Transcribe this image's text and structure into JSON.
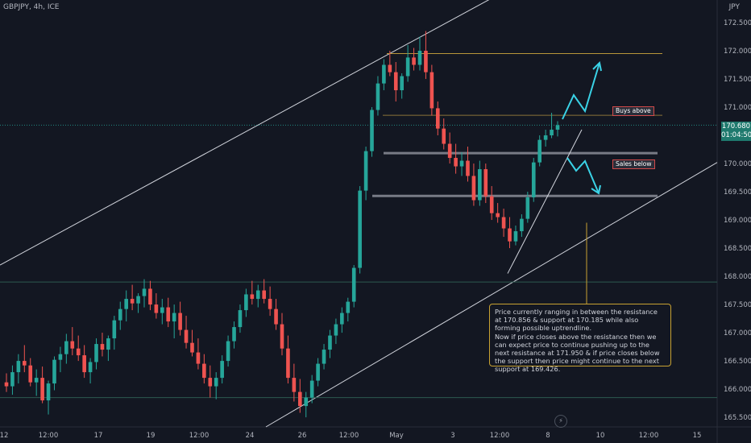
{
  "header": {
    "symbol": "GBPJPY, 4h, ICE",
    "currency": "JPY"
  },
  "price_tag": {
    "price": "170.680",
    "countdown": "01:04:50"
  },
  "annotation": {
    "text": "Price currently ranging in between the resistance at 170.856 & support at 170.185 while also forming possible uptrendline.",
    "text2": "Now if price closes above the resistance then we can expect price to continue pushing up to the next resistance at 171.950 & if price closes below the support then price might continue to the next support at 169.426."
  },
  "labels": {
    "buys": "Buys above",
    "sales": "Sales below"
  },
  "icons": {
    "lightning": "lightning-icon"
  },
  "colors": {
    "bg": "#131722",
    "up": "#26a69a",
    "down": "#ef5350",
    "arrow": "#3ad2e6"
  },
  "chart_data": {
    "type": "candlestick",
    "ylim": [
      165.33,
      172.9
    ],
    "y_ticks": [
      "172.500",
      "172.000",
      "171.500",
      "171.000",
      "170.500",
      "170.000",
      "169.500",
      "169.000",
      "168.500",
      "168.000",
      "167.500",
      "167.000",
      "166.500",
      "166.000",
      "165.500"
    ],
    "x_ticks": [
      "12",
      "12:00",
      "17",
      "19",
      "12:00",
      "24",
      "26",
      "12:00",
      "May",
      "3",
      "12:00",
      "8",
      "10",
      "12:00",
      "15"
    ],
    "levels": [
      {
        "name": "resistance_top",
        "value": 171.95
      },
      {
        "name": "resistance",
        "value": 170.856
      },
      {
        "name": "support",
        "value": 170.185
      },
      {
        "name": "support_low",
        "value": 169.426
      },
      {
        "name": "level_168",
        "value": 167.9
      },
      {
        "name": "level_166",
        "value": 165.85
      }
    ],
    "candles": [
      [
        166.12,
        166.28,
        165.95,
        166.05
      ],
      [
        166.05,
        166.42,
        165.9,
        166.3
      ],
      [
        166.3,
        166.62,
        166.1,
        166.5
      ],
      [
        166.5,
        166.78,
        166.3,
        166.42
      ],
      [
        166.42,
        166.55,
        166.05,
        166.12
      ],
      [
        166.12,
        166.35,
        165.88,
        166.2
      ],
      [
        166.2,
        166.4,
        165.75,
        165.8
      ],
      [
        165.8,
        166.15,
        165.55,
        166.1
      ],
      [
        166.1,
        166.58,
        165.98,
        166.52
      ],
      [
        166.52,
        166.75,
        166.3,
        166.62
      ],
      [
        166.62,
        166.98,
        166.45,
        166.85
      ],
      [
        166.85,
        167.1,
        166.6,
        166.72
      ],
      [
        166.72,
        166.95,
        166.5,
        166.6
      ],
      [
        166.6,
        166.78,
        166.2,
        166.3
      ],
      [
        166.3,
        166.55,
        166.1,
        166.48
      ],
      [
        166.48,
        166.9,
        166.35,
        166.8
      ],
      [
        166.8,
        167.0,
        166.58,
        166.7
      ],
      [
        166.7,
        166.95,
        166.5,
        166.9
      ],
      [
        166.9,
        167.3,
        166.7,
        167.22
      ],
      [
        167.22,
        167.55,
        167.05,
        167.42
      ],
      [
        167.42,
        167.75,
        167.2,
        167.6
      ],
      [
        167.6,
        167.85,
        167.4,
        167.52
      ],
      [
        167.52,
        167.7,
        167.35,
        167.65
      ],
      [
        167.65,
        167.95,
        167.45,
        167.78
      ],
      [
        167.78,
        167.92,
        167.4,
        167.5
      ],
      [
        167.5,
        167.7,
        167.25,
        167.35
      ],
      [
        167.35,
        167.6,
        167.15,
        167.45
      ],
      [
        167.45,
        167.62,
        167.1,
        167.2
      ],
      [
        167.2,
        167.5,
        166.9,
        167.35
      ],
      [
        167.35,
        167.55,
        166.95,
        167.05
      ],
      [
        167.05,
        167.3,
        166.72,
        166.82
      ],
      [
        166.82,
        167.05,
        166.58,
        166.65
      ],
      [
        166.65,
        166.9,
        166.35,
        166.45
      ],
      [
        166.45,
        166.62,
        166.1,
        166.2
      ],
      [
        166.2,
        166.42,
        165.85,
        166.05
      ],
      [
        166.05,
        166.3,
        165.82,
        166.2
      ],
      [
        166.2,
        166.6,
        166.1,
        166.5
      ],
      [
        166.5,
        166.95,
        166.4,
        166.85
      ],
      [
        166.85,
        167.2,
        166.72,
        167.1
      ],
      [
        167.1,
        167.5,
        167.0,
        167.4
      ],
      [
        167.4,
        167.78,
        167.28,
        167.68
      ],
      [
        167.68,
        167.92,
        167.5,
        167.6
      ],
      [
        167.6,
        167.85,
        167.45,
        167.75
      ],
      [
        167.75,
        167.95,
        167.52,
        167.6
      ],
      [
        167.6,
        167.82,
        167.3,
        167.42
      ],
      [
        167.42,
        167.6,
        167.05,
        167.15
      ],
      [
        167.15,
        167.35,
        166.6,
        166.72
      ],
      [
        166.72,
        166.95,
        166.1,
        166.2
      ],
      [
        166.2,
        166.45,
        165.78,
        165.95
      ],
      [
        165.95,
        166.18,
        165.58,
        165.7
      ],
      [
        165.7,
        165.95,
        165.5,
        165.85
      ],
      [
        165.85,
        166.25,
        165.75,
        166.15
      ],
      [
        166.15,
        166.55,
        166.05,
        166.45
      ],
      [
        166.45,
        166.8,
        166.35,
        166.7
      ],
      [
        166.7,
        167.05,
        166.55,
        166.95
      ],
      [
        166.95,
        167.25,
        166.8,
        167.15
      ],
      [
        167.15,
        167.45,
        167.0,
        167.35
      ],
      [
        167.35,
        167.62,
        167.2,
        167.55
      ],
      [
        167.55,
        168.2,
        167.45,
        168.15
      ],
      [
        168.15,
        169.6,
        168.05,
        169.52
      ],
      [
        169.52,
        170.3,
        169.35,
        170.22
      ],
      [
        170.22,
        171.0,
        170.12,
        170.95
      ],
      [
        170.95,
        171.55,
        170.85,
        171.42
      ],
      [
        171.42,
        171.85,
        171.3,
        171.75
      ],
      [
        171.75,
        172.0,
        171.55,
        171.62
      ],
      [
        171.62,
        171.8,
        171.1,
        171.3
      ],
      [
        171.3,
        171.6,
        171.15,
        171.55
      ],
      [
        171.55,
        172.1,
        171.45,
        171.88
      ],
      [
        171.88,
        172.05,
        171.65,
        171.75
      ],
      [
        171.75,
        172.25,
        171.65,
        172.0
      ],
      [
        172.0,
        172.35,
        171.5,
        171.62
      ],
      [
        171.62,
        171.75,
        170.85,
        170.98
      ],
      [
        170.98,
        171.1,
        170.5,
        170.62
      ],
      [
        170.62,
        170.8,
        170.25,
        170.35
      ],
      [
        170.35,
        170.55,
        170.0,
        170.1
      ],
      [
        170.1,
        170.35,
        169.82,
        169.95
      ],
      [
        169.95,
        170.2,
        169.78,
        170.05
      ],
      [
        170.05,
        170.3,
        169.68,
        169.78
      ],
      [
        169.78,
        170.0,
        169.25,
        169.35
      ],
      [
        169.35,
        170.05,
        169.25,
        169.9
      ],
      [
        169.9,
        170.0,
        169.3,
        169.42
      ],
      [
        169.42,
        169.6,
        169.0,
        169.12
      ],
      [
        169.12,
        169.3,
        168.95,
        169.05
      ],
      [
        169.05,
        169.2,
        168.7,
        168.85
      ],
      [
        168.85,
        169.05,
        168.5,
        168.62
      ],
      [
        168.62,
        168.9,
        168.55,
        168.8
      ],
      [
        168.8,
        169.1,
        168.7,
        169.02
      ],
      [
        169.02,
        169.5,
        168.95,
        169.4
      ],
      [
        169.4,
        170.1,
        169.32,
        170.02
      ],
      [
        170.02,
        170.5,
        169.95,
        170.42
      ],
      [
        170.42,
        170.6,
        170.3,
        170.5
      ],
      [
        170.5,
        170.9,
        170.45,
        170.6
      ],
      [
        170.6,
        170.75,
        170.48,
        170.68
      ]
    ]
  }
}
